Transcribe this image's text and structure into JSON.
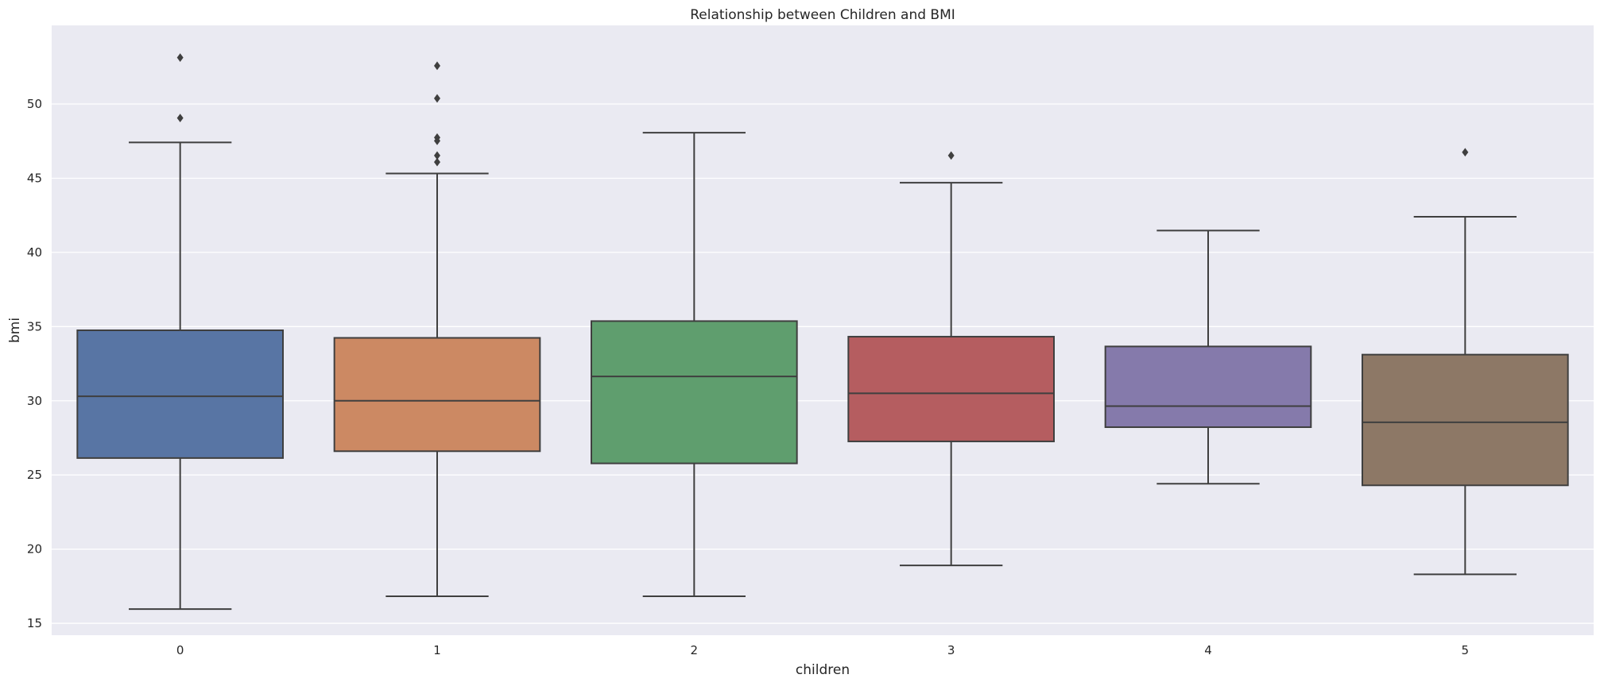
{
  "chart_data": {
    "type": "box",
    "title": "Relationship between Children and BMI",
    "xlabel": "children",
    "ylabel": "bmi",
    "ylim": [
      14.2,
      55.3
    ],
    "yticks": [
      15,
      20,
      25,
      30,
      35,
      40,
      45,
      50
    ],
    "grid": true,
    "categories": [
      "0",
      "1",
      "2",
      "3",
      "4",
      "5"
    ],
    "boxes": [
      {
        "category": "0",
        "whisker_low": 15.96,
        "q1": 26.14,
        "median": 30.3,
        "q3": 34.75,
        "whisker_high": 47.41,
        "outliers": [
          49.06,
          53.13
        ],
        "color": "#5875a4"
      },
      {
        "category": "1",
        "whisker_low": 16.82,
        "q1": 26.6,
        "median": 30.0,
        "q3": 34.24,
        "whisker_high": 45.32,
        "outliers": [
          46.09,
          46.53,
          47.52,
          47.74,
          50.38,
          52.58
        ],
        "color": "#cc8963"
      },
      {
        "category": "2",
        "whisker_low": 16.82,
        "q1": 25.78,
        "median": 31.64,
        "q3": 35.37,
        "whisker_high": 48.07,
        "outliers": [],
        "color": "#5f9e6e"
      },
      {
        "category": "3",
        "whisker_low": 18.9,
        "q1": 27.26,
        "median": 30.5,
        "q3": 34.32,
        "whisker_high": 44.7,
        "outliers": [
          46.53
        ],
        "color": "#b55d60"
      },
      {
        "category": "4",
        "whisker_low": 24.41,
        "q1": 28.22,
        "median": 29.64,
        "q3": 33.66,
        "whisker_high": 41.47,
        "outliers": [],
        "color": "#857aab"
      },
      {
        "category": "5",
        "whisker_low": 18.3,
        "q1": 24.3,
        "median": 28.55,
        "q3": 33.11,
        "whisker_high": 42.4,
        "outliers": [
          46.75
        ],
        "color": "#8d7866"
      }
    ],
    "colors": {
      "background": "#eaeaf2",
      "grid": "#ffffff",
      "edge": "#3f3f3f",
      "text": "#262626"
    }
  }
}
